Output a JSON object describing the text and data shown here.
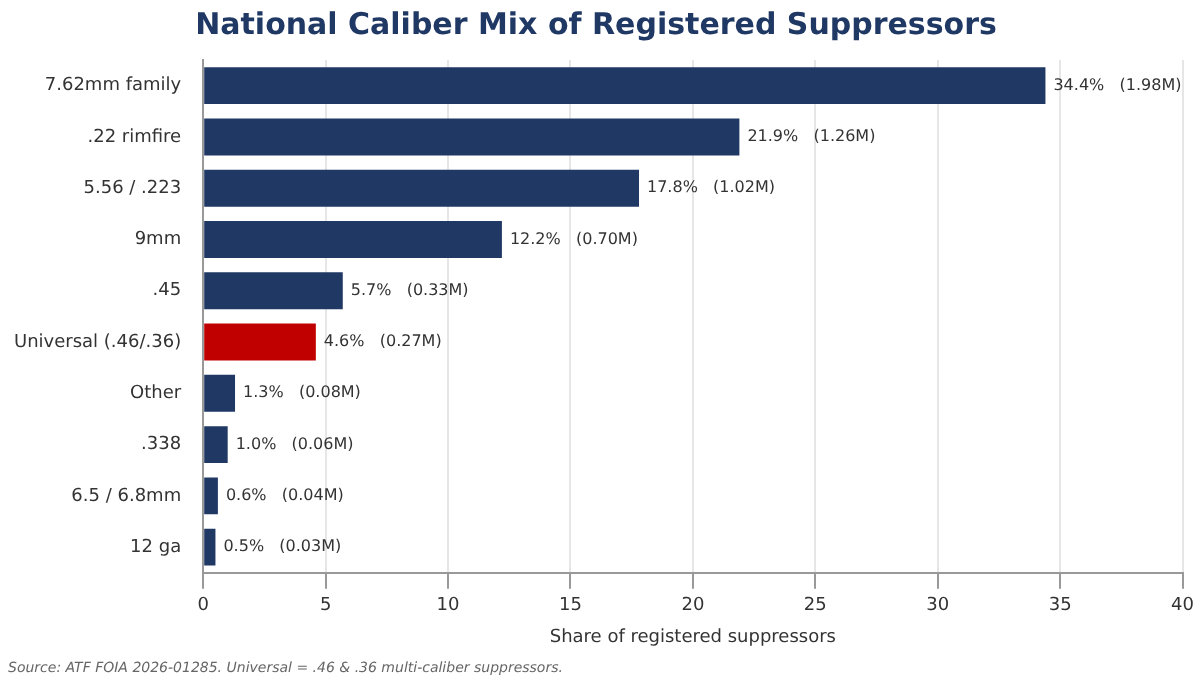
{
  "chart_data": {
    "type": "bar",
    "orientation": "horizontal",
    "title": "National Caliber Mix of Registered Suppressors",
    "xlabel": "Share of registered suppressors",
    "categories": [
      "7.62mm family",
      ".22 rimfire",
      "5.56 / .223",
      "9mm",
      ".45",
      "Universal (.46/.36)",
      "Other",
      ".338",
      "6.5 / 6.8mm",
      "12 ga"
    ],
    "values": [
      34.4,
      21.9,
      17.8,
      12.2,
      5.7,
      4.6,
      1.3,
      1.0,
      0.6,
      0.5
    ],
    "colors": [
      "#1f3864",
      "#1f3864",
      "#1f3864",
      "#1f3864",
      "#1f3864",
      "#c00000",
      "#1f3864",
      "#1f3864",
      "#1f3864",
      "#1f3864"
    ],
    "value_labels": [
      "34.4%   (1.98M)",
      "21.9%   (1.26M)",
      "17.8%   (1.02M)",
      "12.2%   (0.70M)",
      "5.7%   (0.33M)",
      "4.6%   (0.27M)",
      "1.3%   (0.08M)",
      "1.0%   (0.06M)",
      "0.6%   (0.04M)",
      "0.5%   (0.03M)"
    ],
    "xlim": [
      0,
      40
    ],
    "xticks": [
      0,
      5,
      10,
      15,
      20,
      25,
      30,
      35,
      40
    ],
    "grid": "x",
    "annotations": [
      "Source: ATF FOIA 2026-01285. Universal = .46 & .36 multi-caliber suppressors."
    ]
  }
}
